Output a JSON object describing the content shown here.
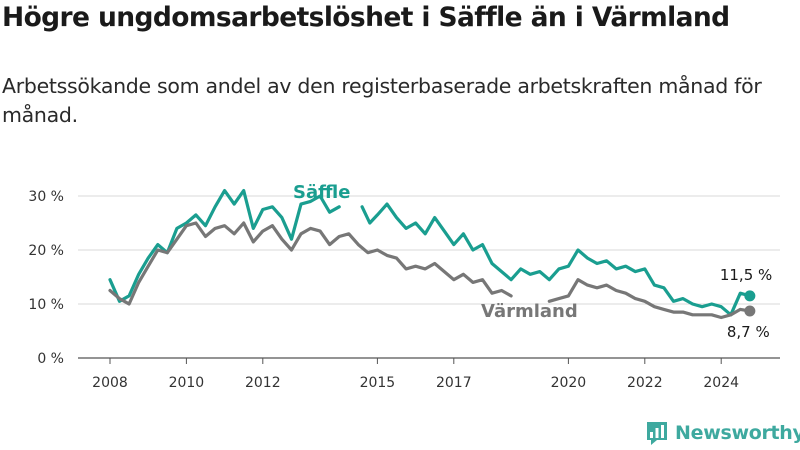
{
  "title": "Högre ungdomsarbetslöshet i Säffle än i Värmland",
  "subtitle": "Arbetssökande som andel av den registerbaserade arbetskraften månad för månad.",
  "brand": {
    "name": "Newsworthy",
    "icon": "bar-chart-logo-icon",
    "color": "#3ea99f"
  },
  "chart_data": {
    "type": "line",
    "y_ticks": [
      "0 %",
      "10 %",
      "20 %",
      "30 %"
    ],
    "x_ticks": [
      "2008",
      "2010",
      "2012",
      "2015",
      "2017",
      "2020",
      "2022",
      "2024"
    ],
    "x_tick_years": [
      2008,
      2010,
      2012,
      2015,
      2017,
      2020,
      2022,
      2024
    ],
    "ylim": [
      0,
      30
    ],
    "grid": true,
    "series": [
      {
        "name": "Säffle",
        "color": "#1a9e90",
        "end_label": "11,5 %",
        "points": [
          [
            2008.0,
            14.5
          ],
          [
            2008.25,
            10.5
          ],
          [
            2008.5,
            11.5
          ],
          [
            2008.75,
            15.5
          ],
          [
            2009.0,
            18.5
          ],
          [
            2009.25,
            21.0
          ],
          [
            2009.5,
            19.5
          ],
          [
            2009.75,
            24.0
          ],
          [
            2010.0,
            25.0
          ],
          [
            2010.25,
            26.5
          ],
          [
            2010.5,
            24.5
          ],
          [
            2010.75,
            28.0
          ],
          [
            2011.0,
            31.0
          ],
          [
            2011.25,
            28.5
          ],
          [
            2011.5,
            31.0
          ],
          [
            2011.75,
            24.0
          ],
          [
            2012.0,
            27.5
          ],
          [
            2012.25,
            28.0
          ],
          [
            2012.5,
            26.0
          ],
          [
            2012.75,
            22.0
          ],
          [
            2013.0,
            28.5
          ],
          [
            2013.25,
            29.0
          ],
          [
            2013.5,
            30.0
          ],
          [
            2013.75,
            27.0
          ],
          [
            2014.0,
            28.0
          ],
          [
            2014.3,
            null
          ],
          [
            2014.6,
            28.0
          ],
          [
            2014.8,
            25.0
          ],
          [
            2015.0,
            26.5
          ],
          [
            2015.25,
            28.5
          ],
          [
            2015.5,
            26.0
          ],
          [
            2015.75,
            24.0
          ],
          [
            2016.0,
            25.0
          ],
          [
            2016.25,
            23.0
          ],
          [
            2016.5,
            26.0
          ],
          [
            2016.75,
            23.5
          ],
          [
            2017.0,
            21.0
          ],
          [
            2017.25,
            23.0
          ],
          [
            2017.5,
            20.0
          ],
          [
            2017.75,
            21.0
          ],
          [
            2018.0,
            17.5
          ],
          [
            2018.25,
            16.0
          ],
          [
            2018.5,
            14.5
          ],
          [
            2018.75,
            16.5
          ],
          [
            2019.0,
            15.5
          ],
          [
            2019.25,
            16.0
          ],
          [
            2019.5,
            14.5
          ],
          [
            2019.75,
            16.5
          ],
          [
            2020.0,
            17.0
          ],
          [
            2020.25,
            20.0
          ],
          [
            2020.5,
            18.5
          ],
          [
            2020.75,
            17.5
          ],
          [
            2021.0,
            18.0
          ],
          [
            2021.25,
            16.5
          ],
          [
            2021.5,
            17.0
          ],
          [
            2021.75,
            16.0
          ],
          [
            2022.0,
            16.5
          ],
          [
            2022.25,
            13.5
          ],
          [
            2022.5,
            13.0
          ],
          [
            2022.75,
            10.5
          ],
          [
            2023.0,
            11.0
          ],
          [
            2023.25,
            10.0
          ],
          [
            2023.5,
            9.5
          ],
          [
            2023.75,
            10.0
          ],
          [
            2024.0,
            9.5
          ],
          [
            2024.25,
            8.0
          ],
          [
            2024.5,
            12.0
          ],
          [
            2024.75,
            11.5
          ]
        ]
      },
      {
        "name": "Värmland",
        "color": "#777777",
        "end_label": "8,7 %",
        "points": [
          [
            2008.0,
            12.5
          ],
          [
            2008.25,
            11.0
          ],
          [
            2008.5,
            10.0
          ],
          [
            2008.75,
            14.0
          ],
          [
            2009.0,
            17.0
          ],
          [
            2009.25,
            20.0
          ],
          [
            2009.5,
            19.5
          ],
          [
            2009.75,
            22.0
          ],
          [
            2010.0,
            24.5
          ],
          [
            2010.25,
            25.0
          ],
          [
            2010.5,
            22.5
          ],
          [
            2010.75,
            24.0
          ],
          [
            2011.0,
            24.5
          ],
          [
            2011.25,
            23.0
          ],
          [
            2011.5,
            25.0
          ],
          [
            2011.75,
            21.5
          ],
          [
            2012.0,
            23.5
          ],
          [
            2012.25,
            24.5
          ],
          [
            2012.5,
            22.0
          ],
          [
            2012.75,
            20.0
          ],
          [
            2013.0,
            23.0
          ],
          [
            2013.25,
            24.0
          ],
          [
            2013.5,
            23.5
          ],
          [
            2013.75,
            21.0
          ],
          [
            2014.0,
            22.5
          ],
          [
            2014.25,
            23.0
          ],
          [
            2014.5,
            21.0
          ],
          [
            2014.75,
            19.5
          ],
          [
            2015.0,
            20.0
          ],
          [
            2015.25,
            19.0
          ],
          [
            2015.5,
            18.5
          ],
          [
            2015.75,
            16.5
          ],
          [
            2016.0,
            17.0
          ],
          [
            2016.25,
            16.5
          ],
          [
            2016.5,
            17.5
          ],
          [
            2016.75,
            16.0
          ],
          [
            2017.0,
            14.5
          ],
          [
            2017.25,
            15.5
          ],
          [
            2017.5,
            14.0
          ],
          [
            2017.75,
            14.5
          ],
          [
            2018.0,
            12.0
          ],
          [
            2018.25,
            12.5
          ],
          [
            2018.5,
            11.5
          ],
          [
            2018.75,
            null
          ],
          [
            2019.0,
            null
          ],
          [
            2019.25,
            null
          ],
          [
            2019.5,
            10.5
          ],
          [
            2019.75,
            11.0
          ],
          [
            2020.0,
            11.5
          ],
          [
            2020.25,
            14.5
          ],
          [
            2020.5,
            13.5
          ],
          [
            2020.75,
            13.0
          ],
          [
            2021.0,
            13.5
          ],
          [
            2021.25,
            12.5
          ],
          [
            2021.5,
            12.0
          ],
          [
            2021.75,
            11.0
          ],
          [
            2022.0,
            10.5
          ],
          [
            2022.25,
            9.5
          ],
          [
            2022.5,
            9.0
          ],
          [
            2022.75,
            8.5
          ],
          [
            2023.0,
            8.5
          ],
          [
            2023.25,
            8.0
          ],
          [
            2023.5,
            8.0
          ],
          [
            2023.75,
            8.0
          ],
          [
            2024.0,
            7.5
          ],
          [
            2024.25,
            8.0
          ],
          [
            2024.5,
            9.0
          ],
          [
            2024.75,
            8.7
          ]
        ]
      }
    ]
  }
}
